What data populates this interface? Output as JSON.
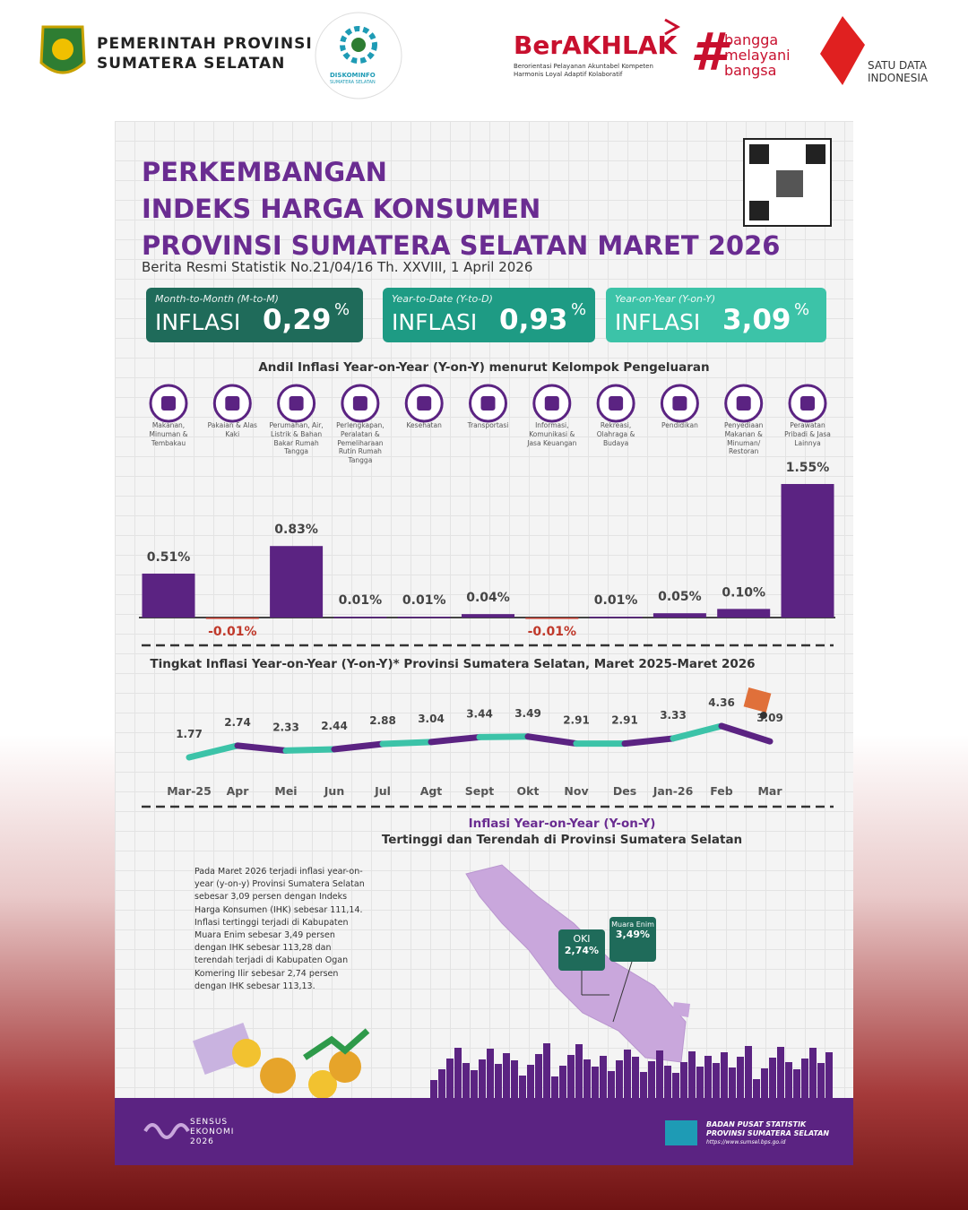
{
  "header": {
    "org": [
      "PEMERINTAH PROVINSI",
      "SUMATERA SELATAN"
    ],
    "diskominfo": "DISKOMINFO",
    "diskominfo_sub": "SUMATERA SELATAN",
    "berakhlak": "BerAKHLAK",
    "berakhlak_sub": [
      "Berorientasi Pelayanan Akuntabel Kompeten",
      "Harmonis Loyal Adaptif Kolaboratif"
    ],
    "bangga": [
      "bangga",
      "melayani",
      "bangsa"
    ],
    "satudata": [
      "SATU DATA",
      "INDONESIA"
    ]
  },
  "title": [
    "PERKEMBANGAN",
    "INDEKS HARGA KONSUMEN",
    "PROVINSI SUMATERA SELATAN MARET 2026"
  ],
  "subtitle": "Berita Resmi Statistik No.21/04/16 Th. XXVIII, 1 April 2026",
  "boxes": [
    {
      "period": "Month-to-Month (M-to-M)",
      "label": "INFLASI",
      "value": "0,29",
      "unit": "%",
      "color": "#1f6b5a"
    },
    {
      "period": "Year-to-Date (Y-to-D)",
      "label": "INFLASI",
      "value": "0,93",
      "unit": "%",
      "color": "#1e9b84"
    },
    {
      "period": "Year-on-Year (Y-on-Y)",
      "label": "INFLASI",
      "value": "3,09",
      "unit": "%",
      "color": "#3cc3a8"
    }
  ],
  "chart_data": [
    {
      "type": "bar",
      "title": "Andil Inflasi Year-on-Year (Y-on-Y) menurut Kelompok Pengeluaran",
      "categories": [
        "Makanan, Minuman & Tembakau",
        "Pakaian & Alas Kaki",
        "Perumahan, Air, Listrik & Bahan Bakar Rumah Tangga",
        "Perlengkapan, Peralatan & Pemeliharaan Rutin Rumah Tangga",
        "Kesehatan",
        "Transportasi",
        "Informasi, Komunikasi & Jasa Keuangan",
        "Rekreasi, Olahraga & Budaya",
        "Pendidikan",
        "Penyediaan Makanan & Minuman/ Restoran",
        "Perawatan Pribadi & Jasa Lainnya"
      ],
      "values": [
        0.51,
        -0.01,
        0.83,
        0.01,
        0.01,
        0.04,
        -0.01,
        0.01,
        0.05,
        0.1,
        1.55
      ],
      "value_labels": [
        "0.51%",
        "-0.01%",
        "0.83%",
        "0.01%",
        "0.01%",
        "0.04%",
        "-0.01%",
        "0.01%",
        "0.05%",
        "0.10%",
        "1.55%"
      ],
      "color": "#5b2382",
      "negative_color": "#c0392b"
    },
    {
      "type": "line",
      "title": "Tingkat Inflasi Year-on-Year (Y-on-Y)* Provinsi Sumatera Selatan, Maret 2025-Maret 2026",
      "categories": [
        "Mar-25",
        "Apr",
        "Mei",
        "Jun",
        "Jul",
        "Agt",
        "Sept",
        "Okt",
        "Nov",
        "Des",
        "Jan-26",
        "Feb",
        "Mar"
      ],
      "values": [
        1.77,
        2.74,
        2.33,
        2.44,
        2.88,
        3.04,
        3.44,
        3.49,
        2.91,
        2.91,
        3.33,
        4.36,
        3.09
      ],
      "colors": [
        "#5b2382",
        "#3cc3a8"
      ]
    }
  ],
  "map": {
    "title": [
      "Inflasi Year-on-Year (Y-on-Y)",
      "Tertinggi dan Terendah di Provinsi Sumatera Selatan"
    ],
    "text": "Pada Maret 2026 terjadi inflasi year-on-year (y-on-y) Provinsi Sumatera Selatan sebesar 3,09 persen dengan Indeks Harga Konsumen (IHK) sebesar 111,14. Inflasi tertinggi terjadi di Kabupaten Muara Enim sebesar 3,49 persen dengan IHK sebesar 113,28 dan terendah terjadi di Kabupaten Ogan Komering Ilir sebesar 2,74 persen dengan IHK sebesar 113,13.",
    "callouts": [
      {
        "name": "OKI",
        "value": "2,74%"
      },
      {
        "name": "Muara Enim",
        "value": "3,49%"
      }
    ]
  },
  "footer": {
    "sensus": [
      "SENSUS",
      "EKONOMI",
      "2026"
    ],
    "bps": [
      "BADAN PUSAT STATISTIK",
      "PROVINSI SUMATERA SELATAN"
    ],
    "url": "https://www.sumsel.bps.go.id"
  }
}
